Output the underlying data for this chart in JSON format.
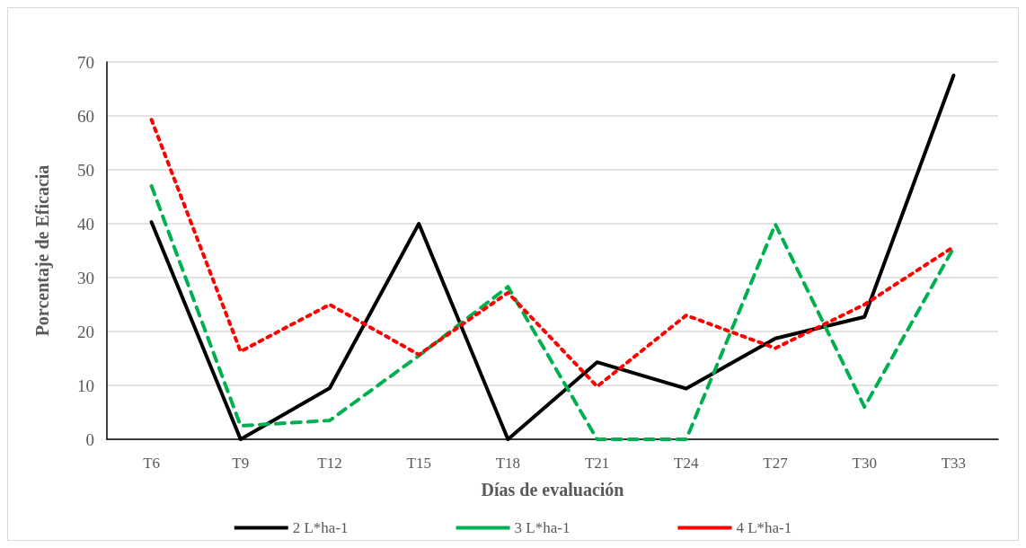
{
  "chart_data": {
    "type": "line",
    "xlabel": "Días de evaluación",
    "ylabel": "Porcentaje de Eficacia",
    "categories": [
      "T6",
      "T9",
      "T12",
      "T15",
      "T18",
      "T21",
      "T24",
      "T27",
      "T30",
      "T33"
    ],
    "series": [
      {
        "name": "2 L*ha-1",
        "color": "#000000",
        "line_style": "solid",
        "values": [
          40.3,
          0,
          9.5,
          40,
          0,
          14.3,
          9.4,
          18.7,
          22.7,
          67.5
        ]
      },
      {
        "name": "3 L*ha-1",
        "color": "#00b050",
        "line_style": "dashed",
        "values": [
          47,
          2.5,
          3.5,
          15.5,
          28.3,
          0,
          0,
          39.9,
          6,
          35.5
        ]
      },
      {
        "name": "4 L*ha-1",
        "color": "#ff0000",
        "line_style": "dotted",
        "values": [
          59.3,
          16.3,
          25,
          15.7,
          27.2,
          9.8,
          23,
          16.9,
          25,
          35.7
        ]
      }
    ],
    "ylim": [
      0,
      70
    ],
    "yticks": [
      0,
      10,
      20,
      30,
      40,
      50,
      60,
      70
    ],
    "grid": "y",
    "legend": "bottom",
    "marker": "none"
  }
}
